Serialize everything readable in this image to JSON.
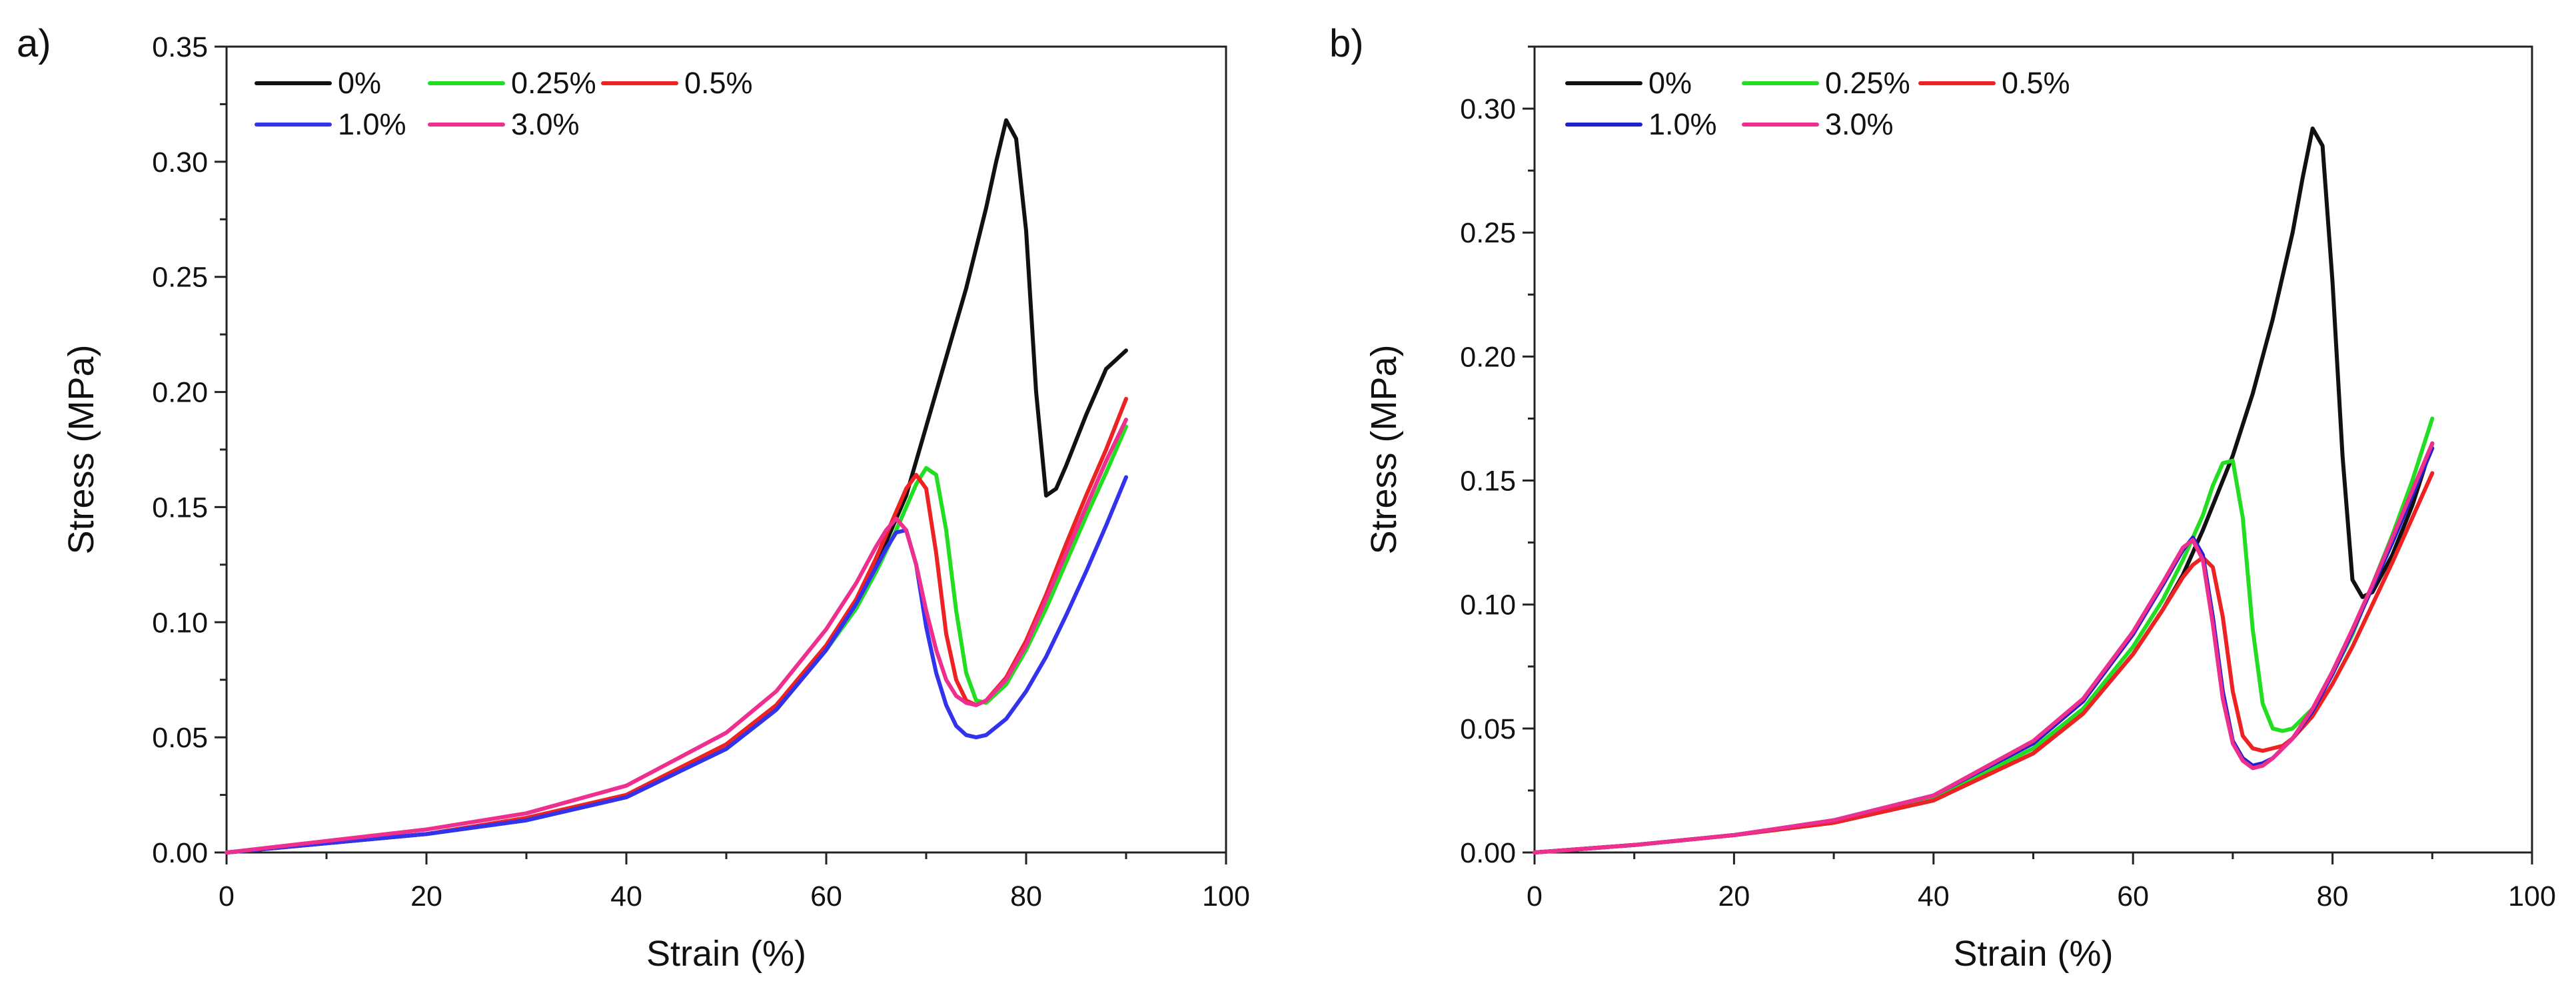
{
  "chart_data": [
    {
      "panel": "a)",
      "type": "line",
      "xlabel": "Strain (%)",
      "ylabel": "Stress (MPa)",
      "xlim": [
        0,
        100
      ],
      "ylim": [
        0,
        0.35
      ],
      "xticks": [
        0,
        20,
        40,
        60,
        80,
        100
      ],
      "yticks": [
        0.0,
        0.05,
        0.1,
        0.15,
        0.2,
        0.25,
        0.3,
        0.35
      ],
      "ytick_labels": [
        "0.00",
        "0.05",
        "0.10",
        "0.15",
        "0.20",
        "0.25",
        "0.30",
        "0.35"
      ],
      "series": [
        {
          "name": "0%",
          "color": "#111111",
          "x": [
            0,
            10,
            20,
            30,
            40,
            50,
            55,
            60,
            63,
            65,
            68,
            70,
            72,
            74,
            76,
            77,
            78,
            79,
            80,
            81,
            82,
            83,
            84,
            86,
            88,
            89,
            90
          ],
          "y": [
            0,
            0.004,
            0.008,
            0.014,
            0.024,
            0.045,
            0.062,
            0.088,
            0.108,
            0.125,
            0.155,
            0.185,
            0.215,
            0.245,
            0.28,
            0.3,
            0.318,
            0.31,
            0.27,
            0.2,
            0.155,
            0.158,
            0.168,
            0.19,
            0.21,
            0.214,
            0.218
          ]
        },
        {
          "name": "0.25%",
          "color": "#22dd22",
          "x": [
            0,
            10,
            20,
            30,
            40,
            50,
            55,
            60,
            63,
            65,
            67,
            68,
            69,
            70,
            71,
            72,
            73,
            74,
            75,
            76,
            78,
            80,
            82,
            84,
            86,
            88,
            90
          ],
          "y": [
            0,
            0.004,
            0.008,
            0.014,
            0.024,
            0.045,
            0.062,
            0.088,
            0.106,
            0.122,
            0.14,
            0.15,
            0.16,
            0.167,
            0.164,
            0.14,
            0.105,
            0.078,
            0.066,
            0.065,
            0.073,
            0.088,
            0.106,
            0.126,
            0.146,
            0.165,
            0.185
          ]
        },
        {
          "name": "0.5%",
          "color": "#ee2222",
          "x": [
            0,
            10,
            20,
            30,
            40,
            50,
            55,
            60,
            63,
            65,
            66,
            67,
            68,
            69,
            70,
            71,
            72,
            73,
            74,
            75,
            76,
            78,
            80,
            82,
            84,
            86,
            88,
            90
          ],
          "y": [
            0,
            0.004,
            0.008,
            0.015,
            0.025,
            0.047,
            0.064,
            0.09,
            0.11,
            0.128,
            0.138,
            0.148,
            0.158,
            0.164,
            0.158,
            0.13,
            0.095,
            0.075,
            0.066,
            0.064,
            0.066,
            0.076,
            0.092,
            0.112,
            0.134,
            0.155,
            0.175,
            0.197
          ]
        },
        {
          "name": "1.0%",
          "color": "#3333ee",
          "x": [
            0,
            10,
            20,
            30,
            40,
            50,
            55,
            60,
            63,
            65,
            66,
            67,
            68,
            69,
            70,
            71,
            72,
            73,
            74,
            75,
            76,
            78,
            80,
            82,
            84,
            86,
            88,
            90
          ],
          "y": [
            0,
            0.004,
            0.008,
            0.014,
            0.024,
            0.045,
            0.062,
            0.088,
            0.108,
            0.124,
            0.132,
            0.139,
            0.14,
            0.125,
            0.098,
            0.078,
            0.064,
            0.055,
            0.051,
            0.05,
            0.051,
            0.058,
            0.07,
            0.085,
            0.103,
            0.122,
            0.142,
            0.163
          ]
        },
        {
          "name": "3.0%",
          "color": "#ee2f8f",
          "x": [
            0,
            10,
            20,
            30,
            40,
            50,
            55,
            60,
            63,
            65,
            66,
            67,
            68,
            69,
            70,
            71,
            72,
            73,
            74,
            75,
            76,
            78,
            80,
            82,
            84,
            86,
            88,
            90
          ],
          "y": [
            0,
            0.005,
            0.01,
            0.017,
            0.029,
            0.052,
            0.07,
            0.097,
            0.117,
            0.133,
            0.14,
            0.145,
            0.14,
            0.125,
            0.105,
            0.088,
            0.075,
            0.068,
            0.065,
            0.064,
            0.066,
            0.075,
            0.09,
            0.11,
            0.13,
            0.15,
            0.17,
            0.188
          ]
        }
      ]
    },
    {
      "panel": "b)",
      "type": "line",
      "xlabel": "Strain (%)",
      "ylabel": "Stress (MPa)",
      "xlim": [
        0,
        100
      ],
      "ylim": [
        0,
        0.325
      ],
      "xticks": [
        0,
        20,
        40,
        60,
        80,
        100
      ],
      "yticks": [
        0.0,
        0.05,
        0.1,
        0.15,
        0.2,
        0.25,
        0.3
      ],
      "ytick_labels": [
        "0.00",
        "0.05",
        "0.10",
        "0.15",
        "0.20",
        "0.25",
        "0.30"
      ],
      "series": [
        {
          "name": "0%",
          "color": "#111111",
          "x": [
            0,
            10,
            20,
            30,
            40,
            50,
            55,
            60,
            63,
            65,
            67,
            70,
            72,
            74,
            76,
            77,
            78,
            79,
            80,
            81,
            82,
            83,
            84,
            86,
            88,
            90
          ],
          "y": [
            0,
            0.003,
            0.007,
            0.012,
            0.021,
            0.04,
            0.056,
            0.08,
            0.098,
            0.112,
            0.13,
            0.16,
            0.185,
            0.215,
            0.25,
            0.272,
            0.292,
            0.285,
            0.23,
            0.16,
            0.11,
            0.103,
            0.105,
            0.12,
            0.14,
            0.165
          ]
        },
        {
          "name": "0.25%",
          "color": "#22dd22",
          "x": [
            0,
            10,
            20,
            30,
            40,
            50,
            55,
            60,
            63,
            65,
            67,
            68,
            69,
            70,
            71,
            72,
            73,
            74,
            75,
            76,
            78,
            80,
            82,
            84,
            86,
            88,
            90
          ],
          "y": [
            0,
            0.003,
            0.007,
            0.012,
            0.022,
            0.042,
            0.058,
            0.083,
            0.102,
            0.118,
            0.136,
            0.148,
            0.157,
            0.158,
            0.135,
            0.09,
            0.06,
            0.05,
            0.049,
            0.05,
            0.058,
            0.072,
            0.088,
            0.108,
            0.128,
            0.15,
            0.175
          ]
        },
        {
          "name": "0.5%",
          "color": "#ee2222",
          "x": [
            0,
            10,
            20,
            30,
            40,
            50,
            55,
            60,
            63,
            65,
            66,
            67,
            68,
            69,
            70,
            71,
            72,
            73,
            74,
            75,
            76,
            78,
            80,
            82,
            84,
            86,
            88,
            90
          ],
          "y": [
            0,
            0.003,
            0.007,
            0.012,
            0.021,
            0.04,
            0.056,
            0.08,
            0.098,
            0.111,
            0.116,
            0.119,
            0.115,
            0.095,
            0.065,
            0.047,
            0.042,
            0.041,
            0.042,
            0.043,
            0.046,
            0.055,
            0.068,
            0.083,
            0.1,
            0.117,
            0.135,
            0.153
          ]
        },
        {
          "name": "1.0%",
          "color": "#2222cc",
          "x": [
            0,
            10,
            20,
            30,
            40,
            50,
            55,
            60,
            63,
            65,
            66,
            67,
            68,
            69,
            70,
            71,
            72,
            73,
            74,
            75,
            76,
            78,
            80,
            82,
            84,
            86,
            88,
            90
          ],
          "y": [
            0,
            0.003,
            0.007,
            0.013,
            0.023,
            0.044,
            0.061,
            0.088,
            0.108,
            0.122,
            0.127,
            0.12,
            0.095,
            0.065,
            0.045,
            0.038,
            0.035,
            0.036,
            0.038,
            0.042,
            0.046,
            0.057,
            0.072,
            0.089,
            0.107,
            0.125,
            0.144,
            0.163
          ]
        },
        {
          "name": "3.0%",
          "color": "#ee2f8f",
          "x": [
            0,
            10,
            20,
            30,
            40,
            50,
            55,
            60,
            63,
            65,
            66,
            67,
            68,
            69,
            70,
            71,
            72,
            73,
            74,
            75,
            76,
            78,
            80,
            82,
            84,
            86,
            88,
            90
          ],
          "y": [
            0,
            0.003,
            0.007,
            0.013,
            0.023,
            0.045,
            0.062,
            0.089,
            0.109,
            0.123,
            0.126,
            0.118,
            0.092,
            0.062,
            0.044,
            0.037,
            0.034,
            0.035,
            0.038,
            0.042,
            0.046,
            0.058,
            0.073,
            0.09,
            0.108,
            0.127,
            0.146,
            0.165
          ]
        }
      ]
    }
  ]
}
